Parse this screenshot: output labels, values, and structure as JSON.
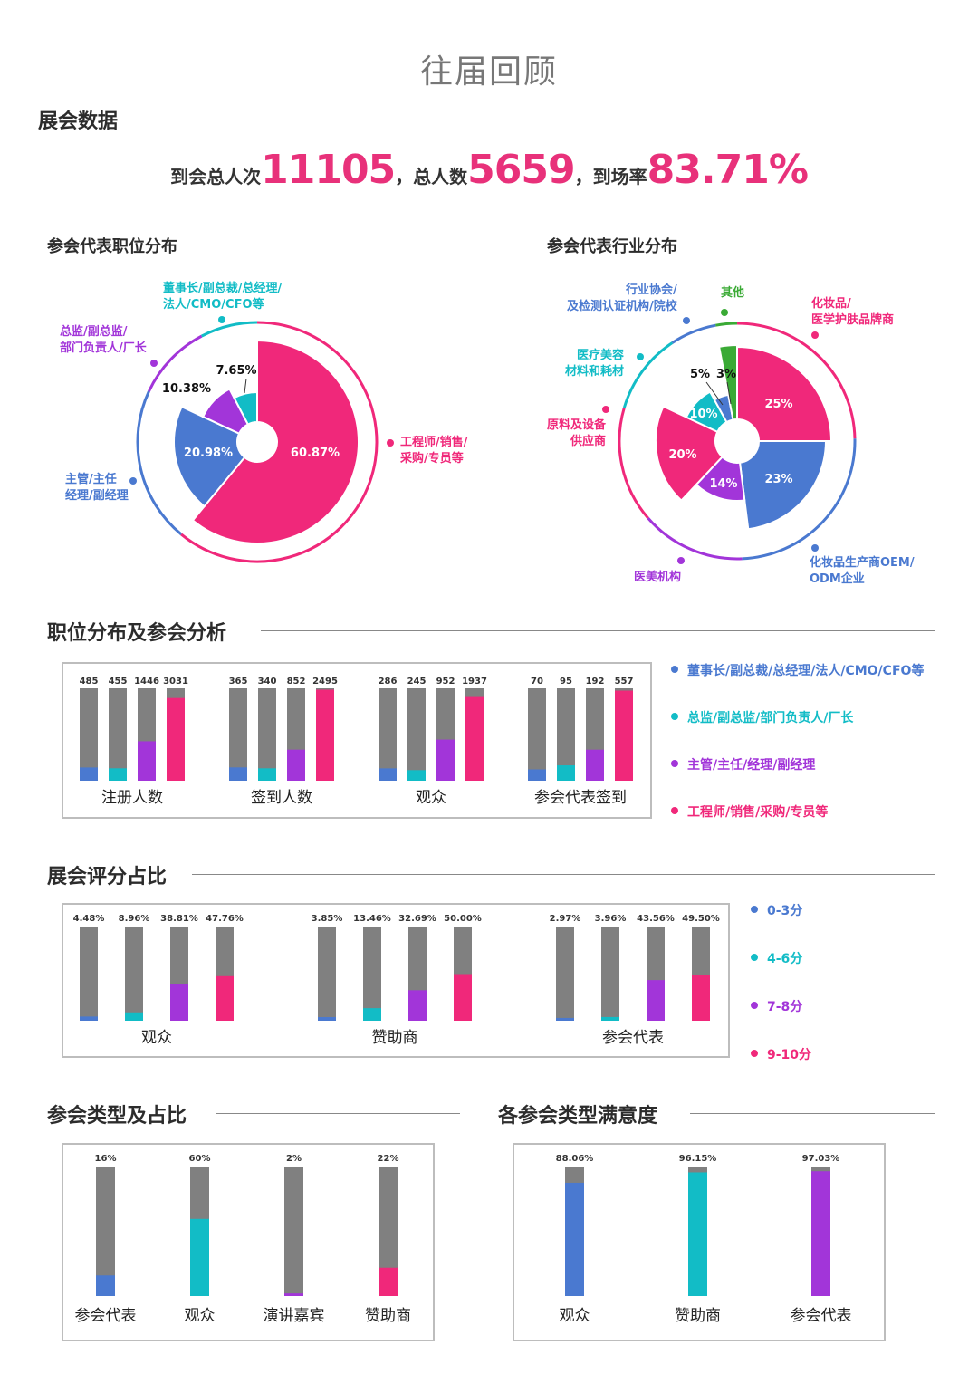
{
  "page_title": "往届回顾",
  "colors": {
    "accent": "#e8317a",
    "blue": "#4a79d0",
    "teal": "#12bcc6",
    "purple": "#a235d9",
    "pink": "#f0287a",
    "gray": "#808080",
    "green": "#3aaa35"
  },
  "section1": {
    "title": "展会数据",
    "headline": {
      "label1": "到会总人次",
      "value1": "11105",
      "label2": "，总人数",
      "value2": "5659",
      "label3": "，到场率",
      "value3": "83.71%"
    }
  },
  "pie1": {
    "title": "参会代表职位分布",
    "annotations": {
      "exec": [
        "董事长/副总裁/总经理/",
        "法人/CMO/CFO等"
      ],
      "director": [
        "总监/副总监/",
        "部门负责人/厂长"
      ],
      "manager": [
        "主管/主任",
        "经理/副经理"
      ],
      "engineer": [
        "工程师/销售/",
        "采购/专员等"
      ]
    }
  },
  "pie2": {
    "title": "参会代表行业分布",
    "annotations": {
      "association": [
        "行业协会/",
        "及检测认证机构/院校"
      ],
      "other": [
        "其他"
      ],
      "cosmetics": [
        "化妆品/",
        "医学护肤品牌商"
      ],
      "aesthetic": [
        "医疗美容",
        "材料和耗材"
      ],
      "raw": [
        "原料及设备",
        "供应商"
      ],
      "oem": [
        "化妆品生产商OEM/",
        "ODM企业"
      ],
      "clinic": [
        "医美机构"
      ]
    }
  },
  "section2": {
    "title": "职位分布及参会分析"
  },
  "section3": {
    "title": "展会评分占比"
  },
  "section4": {
    "title": "参会类型及占比"
  },
  "section5": {
    "title": "各参会类型满意度"
  },
  "legend_positions": [
    {
      "label": "董事长/副总裁/总经理/法人/CMO/CFO等",
      "color": "#4a79d0"
    },
    {
      "label": "总监/副总监/部门负责人/厂长",
      "color": "#12bcc6"
    },
    {
      "label": "主管/主任/经理/副经理",
      "color": "#a235d9"
    },
    {
      "label": "工程师/销售/采购/专员等",
      "color": "#f0287a"
    }
  ],
  "legend_scores": [
    {
      "label": "0-3分",
      "color": "#4a79d0"
    },
    {
      "label": "4-6分",
      "color": "#12bcc6"
    },
    {
      "label": "7-8分",
      "color": "#a235d9"
    },
    {
      "label": "9-10分",
      "color": "#f0287a"
    }
  ],
  "chart_data": [
    {
      "id": "position_pie",
      "type": "pie",
      "title": "参会代表职位分布",
      "slices": [
        {
          "name": "工程师/销售/采购/专员等",
          "value": 60.87,
          "label": "60.87%",
          "color": "#f0287a"
        },
        {
          "name": "主管/主任/经理/副经理",
          "value": 20.98,
          "label": "20.98%",
          "color": "#4a79d0"
        },
        {
          "name": "总监/副总监/部门负责人/厂长",
          "value": 10.38,
          "label": "10.38%",
          "color": "#a235d9"
        },
        {
          "name": "董事长/副总裁/总经理/法人/CMO/CFO等",
          "value": 7.65,
          "label": "7.65%",
          "color": "#12bcc6"
        }
      ]
    },
    {
      "id": "industry_pie",
      "type": "pie",
      "title": "参会代表行业分布",
      "slices": [
        {
          "name": "化妆品/医学护肤品牌商",
          "value": 25,
          "label": "25%",
          "color": "#f0287a"
        },
        {
          "name": "化妆品生产商OEM/ODM企业",
          "value": 23,
          "label": "23%",
          "color": "#4a79d0"
        },
        {
          "name": "医美机构",
          "value": 14,
          "label": "14%",
          "color": "#a235d9"
        },
        {
          "name": "原料及设备供应商",
          "value": 20,
          "label": "20%",
          "color": "#f0287a"
        },
        {
          "name": "医疗美容材料和耗材",
          "value": 10,
          "label": "10%",
          "color": "#12bcc6"
        },
        {
          "name": "行业协会/及检测认证机构/院校",
          "value": 5,
          "label": "5%",
          "color": "#4a79d0"
        },
        {
          "name": "其他",
          "value": 3,
          "label": "3%",
          "color": "#3aaa35"
        }
      ]
    },
    {
      "id": "position_bars",
      "type": "bar",
      "title": "职位分布及参会分析",
      "series_colors": [
        "#4a79d0",
        "#12bcc6",
        "#a235d9",
        "#f0287a"
      ],
      "groups": [
        {
          "name": "注册人数",
          "values": [
            485,
            455,
            1446,
            3031
          ],
          "labels": [
            "485",
            "455",
            "1446",
            "3031"
          ]
        },
        {
          "name": "签到人数",
          "values": [
            365,
            340,
            852,
            2495
          ],
          "labels": [
            "365",
            "340",
            "852",
            "2495"
          ]
        },
        {
          "name": "观众",
          "values": [
            286,
            245,
            952,
            1937
          ],
          "labels": [
            "286",
            "245",
            "952",
            "1937"
          ]
        },
        {
          "name": "参会代表签到",
          "values": [
            70,
            95,
            192,
            557
          ],
          "labels": [
            "70",
            "95",
            "192",
            "557"
          ]
        }
      ]
    },
    {
      "id": "score_bars",
      "type": "bar",
      "title": "展会评分占比",
      "series_colors": [
        "#4a79d0",
        "#12bcc6",
        "#a235d9",
        "#f0287a"
      ],
      "groups": [
        {
          "name": "观众",
          "values": [
            4.48,
            8.96,
            38.81,
            47.76
          ],
          "labels": [
            "4.48%",
            "8.96%",
            "38.81%",
            "47.76%"
          ]
        },
        {
          "name": "赞助商",
          "values": [
            3.85,
            13.46,
            32.69,
            50.0
          ],
          "labels": [
            "3.85%",
            "13.46%",
            "32.69%",
            "50.00%"
          ]
        },
        {
          "name": "参会代表",
          "values": [
            2.97,
            3.96,
            43.56,
            49.5
          ],
          "labels": [
            "2.97%",
            "3.96%",
            "43.56%",
            "49.50%"
          ]
        }
      ]
    },
    {
      "id": "type_bars",
      "type": "bar",
      "title": "参会类型及占比",
      "categories": [
        "参会代表",
        "观众",
        "演讲嘉宾",
        "赞助商"
      ],
      "values": [
        16,
        60,
        2,
        22
      ],
      "labels": [
        "16%",
        "60%",
        "2%",
        "22%"
      ],
      "colors": [
        "#4a79d0",
        "#12bcc6",
        "#a235d9",
        "#f0287a"
      ]
    },
    {
      "id": "satisfaction_bars",
      "type": "bar",
      "title": "各参会类型满意度",
      "categories": [
        "观众",
        "赞助商",
        "参会代表"
      ],
      "values": [
        88.06,
        96.15,
        97.03
      ],
      "labels": [
        "88.06%",
        "96.15%",
        "97.03%"
      ],
      "colors": [
        "#4a79d0",
        "#12bcc6",
        "#a235d9"
      ]
    }
  ]
}
